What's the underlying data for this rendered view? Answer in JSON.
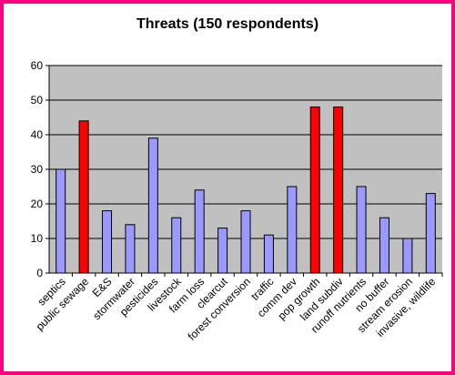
{
  "chart_data": {
    "type": "bar",
    "title": "Threats (150 respondents)",
    "categories": [
      "septics",
      "public sewage",
      "E&S",
      "stormwater",
      "pesticides",
      "livestock",
      "farm loss",
      "clearcut",
      "forest conversion",
      "traffic",
      "comm dev",
      "pop growth",
      "land subdiv",
      "runoff nutrients",
      "no buffer",
      "stream erosion",
      "invasive, wildlife"
    ],
    "values": [
      30,
      44,
      18,
      14,
      39,
      16,
      24,
      13,
      18,
      11,
      25,
      48,
      48,
      25,
      16,
      10,
      23
    ],
    "highlighted": [
      "public sewage",
      "pop growth",
      "land subdiv"
    ],
    "ylim": [
      0,
      60
    ],
    "yticks": [
      0,
      10,
      20,
      30,
      40,
      50,
      60
    ],
    "grid": true,
    "legend": "none",
    "colors": {
      "bar": "#9999ff",
      "highlight": "#ff0000",
      "plot_background": "#c0c0c0",
      "border": "#ff0080"
    }
  }
}
